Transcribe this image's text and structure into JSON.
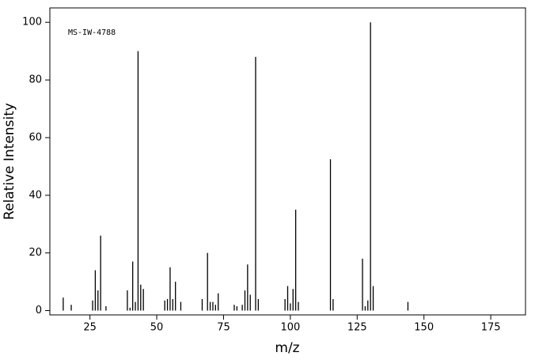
{
  "chart_data": {
    "type": "stick",
    "annotation": "MS-IW-4788",
    "x_label": "m/z",
    "y_label": "Relative Intensity",
    "color": "#000000",
    "x": [
      15,
      18,
      26,
      27,
      28,
      29,
      31,
      39,
      40,
      41,
      42,
      43,
      44,
      45,
      53,
      54,
      55,
      56,
      57,
      59,
      67,
      69,
      70,
      71,
      72,
      73,
      79,
      80,
      82,
      83,
      84,
      85,
      87,
      88,
      98,
      99,
      100,
      101,
      102,
      103,
      115,
      116,
      127,
      128,
      129,
      130,
      131,
      144
    ],
    "values": [
      4.5,
      2,
      3.5,
      14,
      7,
      26,
      1.5,
      7,
      1,
      17,
      3,
      90,
      9,
      7.5,
      3.5,
      4,
      15,
      4,
      10,
      3,
      4,
      20,
      3,
      3,
      2,
      6,
      2,
      1.5,
      2,
      7,
      16,
      5.5,
      88,
      4,
      4,
      8.5,
      2.5,
      7.5,
      35,
      3,
      52.5,
      4,
      18,
      1.5,
      3.5,
      100,
      8.5,
      3
    ],
    "xlim": [
      10,
      188
    ],
    "ylim": [
      -1.5,
      105
    ],
    "xticks": [
      25,
      50,
      75,
      100,
      125,
      150,
      175
    ],
    "yticks": [
      0,
      20,
      40,
      60,
      80,
      100
    ]
  }
}
